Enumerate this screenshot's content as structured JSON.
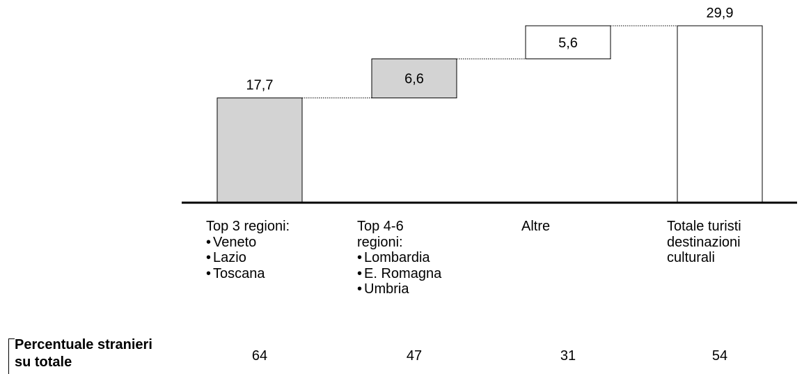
{
  "chart_data": {
    "type": "waterfall",
    "title": "",
    "steps": [
      {
        "label_lines": [
          "Top 3 regioni:"
        ],
        "bullets": [
          "Veneto",
          "Lazio",
          "Toscana"
        ],
        "value": 17.7,
        "value_label": "17,7",
        "fill": "#d3d3d3",
        "kind": "increment"
      },
      {
        "label_lines": [
          "Top 4-6",
          "regioni:"
        ],
        "bullets": [
          "Lombardia",
          "E. Romagna",
          "Umbria"
        ],
        "value": 6.6,
        "value_label": "6,6",
        "fill": "#d3d3d3",
        "kind": "increment"
      },
      {
        "label_lines": [
          "Altre"
        ],
        "bullets": [],
        "value": 5.6,
        "value_label": "5,6",
        "fill": "#ffffff",
        "kind": "increment"
      },
      {
        "label_lines": [
          "Totale turisti",
          "destinazioni",
          "culturali"
        ],
        "bullets": [],
        "value": 29.9,
        "value_label": "29,9",
        "fill": "#ffffff",
        "kind": "total"
      }
    ],
    "bottom_row": {
      "label": "Percentuale stranieri su totale",
      "label_lines": [
        "Percentuale stranieri",
        "su totale"
      ],
      "values": [
        "64",
        "47",
        "31",
        "54"
      ]
    }
  }
}
